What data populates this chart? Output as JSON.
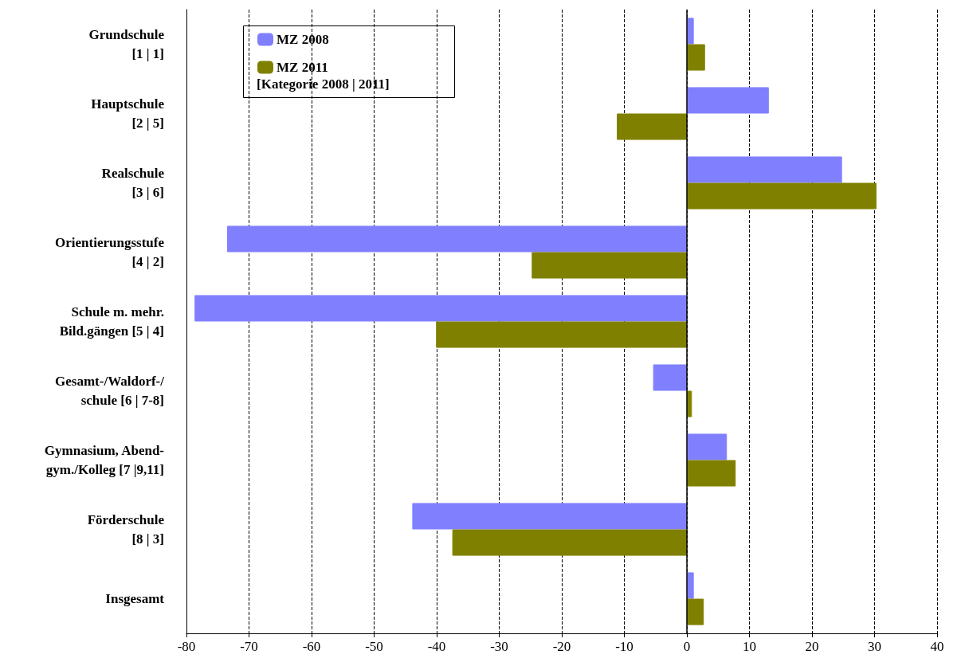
{
  "chart_data": {
    "type": "bar",
    "orientation": "horizontal",
    "categories": [
      "Grundschule\n[1 | 1]",
      "Hauptschule\n[2 | 5]",
      "Realschule\n[3 | 6]",
      "Orientierungsstufe\n[4 | 2]",
      "Schule m. mehr.\nBild.gängen [5 | 4]",
      "Gesamt-/Waldorf-/\nschule [6 | 7-8]",
      "Gymnasium, Abend-\ngym./Kolleg [7 |9,11]",
      "Förderschule\n[8 | 3]",
      "Insgesamt"
    ],
    "series": [
      {
        "name": "MZ 2008",
        "color": "#8080ff",
        "values": [
          1.1,
          13.1,
          24.8,
          -73.5,
          -78.7,
          -5.4,
          6.4,
          -43.9,
          1.1
        ]
      },
      {
        "name": "MZ 2011",
        "color": "#808000",
        "values": [
          2.9,
          -11.2,
          30.3,
          -24.8,
          -40.1,
          0.8,
          7.8,
          -37.5,
          2.7
        ]
      }
    ],
    "legend_title": "[Kategorie 2008 | 2011]",
    "xlim": [
      -80,
      40
    ],
    "xticks": [
      -80,
      -70,
      -60,
      -50,
      -40,
      -30,
      -20,
      -10,
      0,
      10,
      20,
      30,
      40
    ],
    "ref_lines": [
      {
        "axis": "x",
        "value": 0,
        "color": "#000000",
        "line_style": "solid"
      }
    ],
    "grid": "x",
    "legend": "top left"
  }
}
